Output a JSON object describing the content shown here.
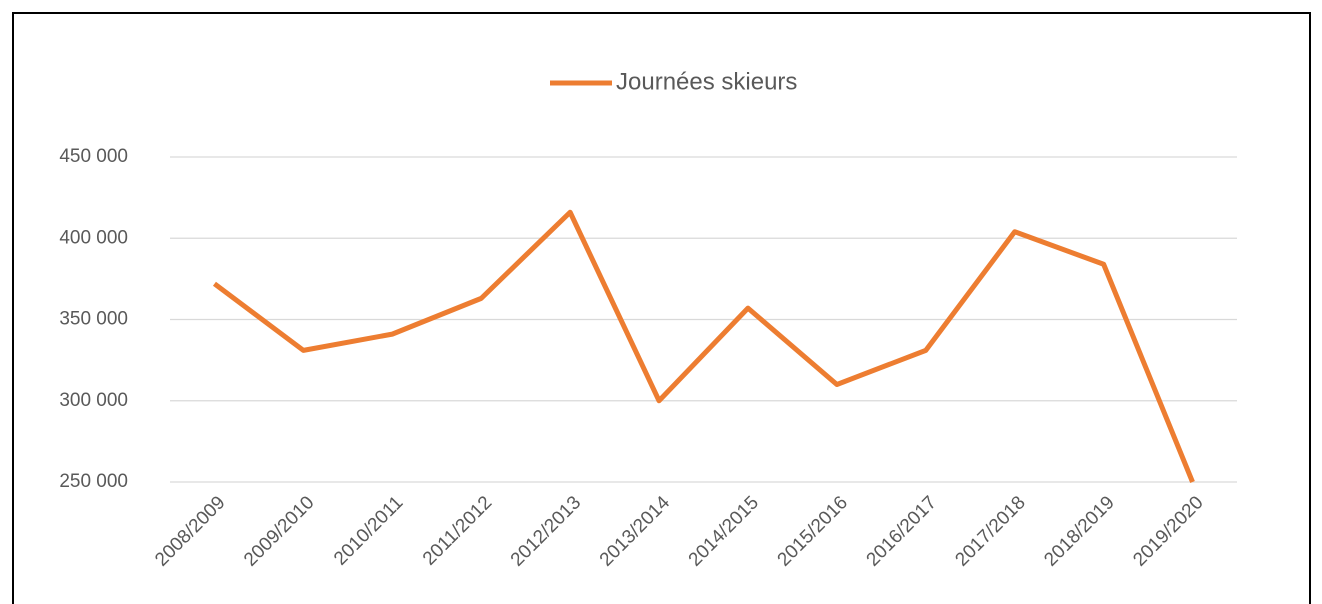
{
  "chart_data": {
    "type": "line",
    "categories": [
      "2008/2009",
      "2009/2010",
      "2010/2011",
      "2011/2012",
      "2012/2013",
      "2013/2014",
      "2014/2015",
      "2015/2016",
      "2016/2017",
      "2017/2018",
      "2018/2019",
      "2019/2020"
    ],
    "series": [
      {
        "name": "Journées skieurs",
        "color": "#ed7d31",
        "values": [
          372000,
          331000,
          341000,
          363000,
          416000,
          300000,
          357000,
          310000,
          331000,
          404000,
          384000,
          250000
        ]
      }
    ],
    "ylim": [
      250000,
      450000
    ],
    "yticks": [
      {
        "value": 250000,
        "label": "250 000"
      },
      {
        "value": 300000,
        "label": "300 000"
      },
      {
        "value": 350000,
        "label": "350 000"
      },
      {
        "value": 400000,
        "label": "400 000"
      },
      {
        "value": 450000,
        "label": "450 000"
      }
    ],
    "grid": true,
    "legend": "top"
  }
}
